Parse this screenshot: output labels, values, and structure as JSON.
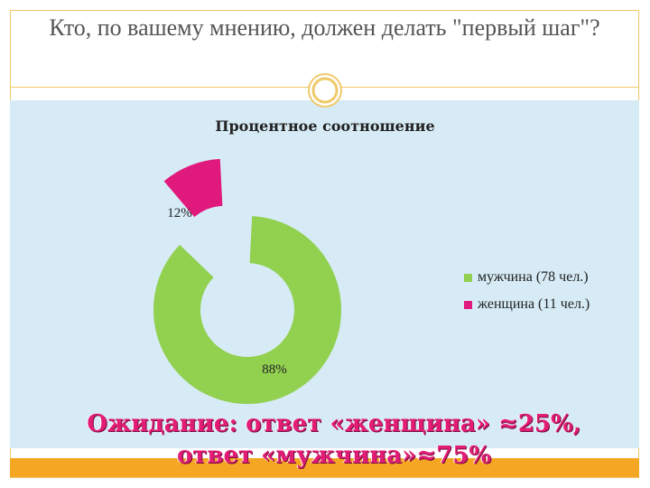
{
  "slide": {
    "title": "Кто, по вашему мнению, должен делать \"первый шаг\"?",
    "caption_line1": "Ожидание: ответ «женщина» ≈25%,",
    "caption_line2": "ответ «мужчина»≈75%"
  },
  "colors": {
    "male": "#92d050",
    "female": "#e0197d",
    "panel": "#d6ebf5",
    "accent": "#f5a623"
  },
  "chart_data": {
    "type": "pie",
    "subtype": "exploded-doughnut",
    "title": "Процентное соотношение",
    "categories": [
      "мужчина (78 чел.)",
      "женщина (11 чел.)"
    ],
    "values": [
      88,
      12
    ],
    "data_labels": [
      "88%",
      "12%"
    ],
    "legend_position": "right"
  }
}
